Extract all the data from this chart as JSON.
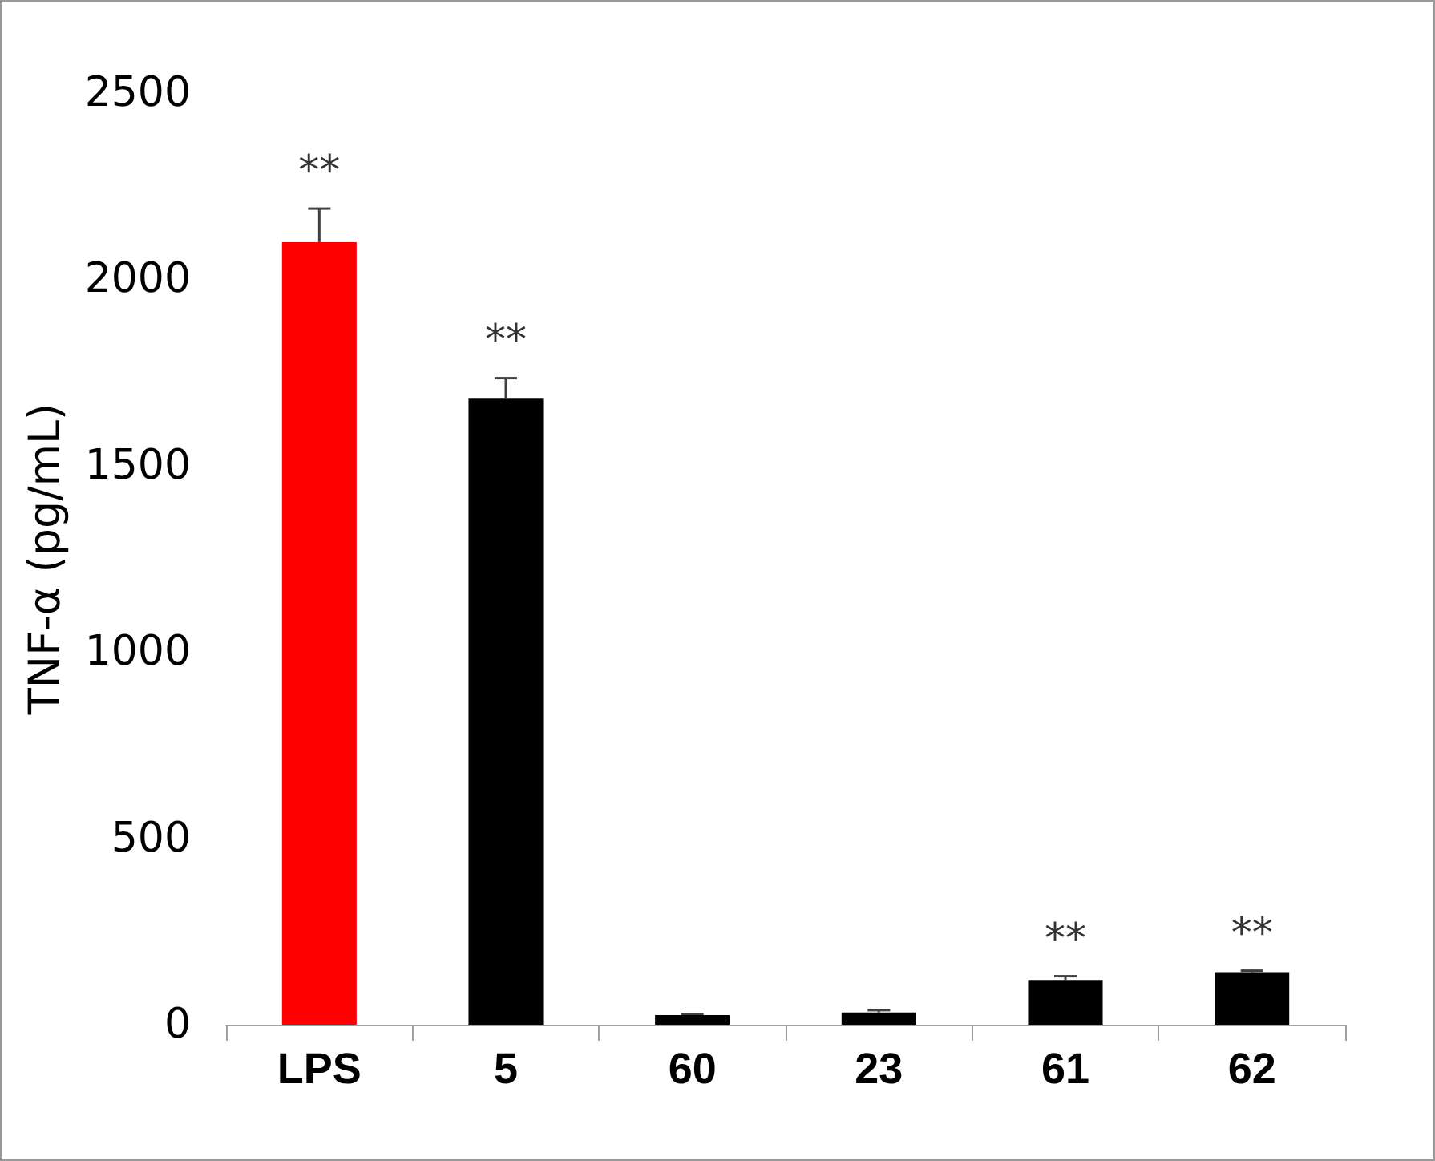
{
  "chart_data": {
    "type": "bar",
    "ylabel": "TNF-α (pg/mL)",
    "categories": [
      "LPS",
      "5",
      "60",
      "23",
      "61",
      "62"
    ],
    "values": [
      2100,
      1680,
      26,
      33,
      120,
      141
    ],
    "colors": [
      "#ff0000",
      "#000000",
      "#000000",
      "#000000",
      "#000000",
      "#000000"
    ],
    "errors": [
      90,
      55,
      3,
      6,
      10,
      4
    ],
    "ylim": [
      0,
      2500
    ],
    "yticks": [
      0,
      500,
      1000,
      1500,
      2000,
      2500
    ],
    "grid": false,
    "annotations": [
      {
        "text": "**",
        "x": "LPS",
        "y": 2191
      },
      {
        "text": "**",
        "x": "5",
        "y": 1737
      },
      {
        "text": "**",
        "x": "61",
        "y": 130
      },
      {
        "text": "**",
        "x": "62",
        "y": 145
      }
    ]
  }
}
